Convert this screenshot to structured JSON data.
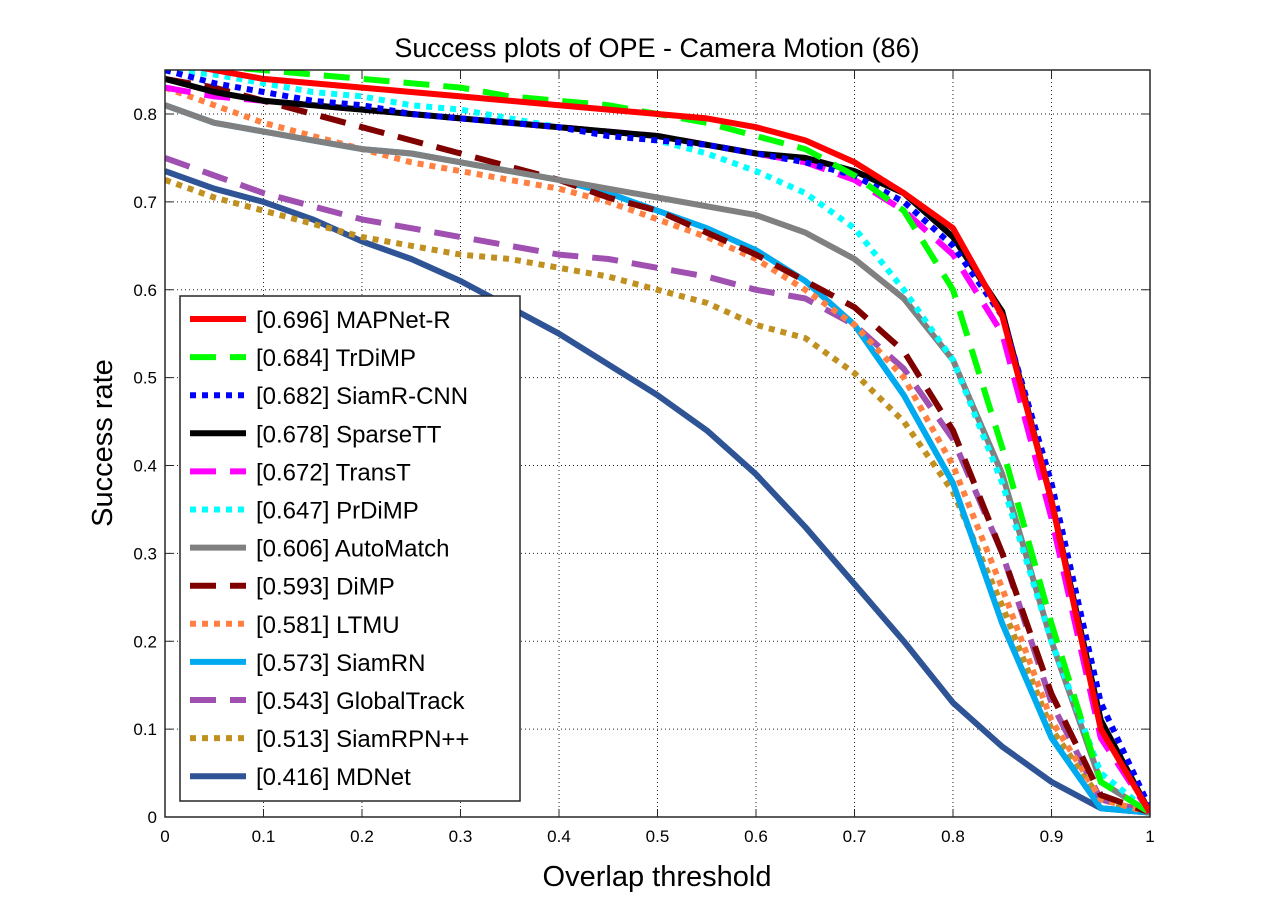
{
  "chart_data": {
    "type": "line",
    "title": "Success plots of OPE - Camera Motion (86)",
    "xlabel": "Overlap threshold",
    "ylabel": "Success rate",
    "xlim": [
      0,
      1
    ],
    "ylim": [
      0,
      0.85
    ],
    "xticks": [
      "0",
      "0.1",
      "0.2",
      "0.3",
      "0.4",
      "0.5",
      "0.6",
      "0.7",
      "0.8",
      "0.9",
      "1"
    ],
    "yticks": [
      "0",
      "0.1",
      "0.2",
      "0.3",
      "0.4",
      "0.5",
      "0.6",
      "0.7",
      "0.8"
    ],
    "grid": "on",
    "legend_location": "lower-left",
    "x": [
      0,
      0.05,
      0.1,
      0.15,
      0.2,
      0.25,
      0.3,
      0.35,
      0.4,
      0.45,
      0.5,
      0.55,
      0.6,
      0.65,
      0.7,
      0.75,
      0.8,
      0.85,
      0.9,
      0.95,
      1
    ],
    "series": [
      {
        "name": "[0.696] MAPNet-R",
        "color": "#ff0000",
        "style": "solid",
        "values": [
          0.86,
          0.85,
          0.84,
          0.835,
          0.83,
          0.825,
          0.82,
          0.815,
          0.81,
          0.805,
          0.8,
          0.795,
          0.785,
          0.77,
          0.745,
          0.71,
          0.67,
          0.57,
          0.36,
          0.1,
          0.005
        ]
      },
      {
        "name": "[0.684] TrDiMP",
        "color": "#00ff00",
        "style": "dash",
        "values": [
          0.865,
          0.855,
          0.85,
          0.845,
          0.84,
          0.835,
          0.83,
          0.82,
          0.815,
          0.81,
          0.8,
          0.79,
          0.775,
          0.76,
          0.73,
          0.69,
          0.6,
          0.42,
          0.22,
          0.04,
          0.005
        ]
      },
      {
        "name": "[0.682] SiamR-CNN",
        "color": "#0000ff",
        "style": "dot",
        "values": [
          0.85,
          0.835,
          0.825,
          0.815,
          0.81,
          0.8,
          0.795,
          0.79,
          0.785,
          0.775,
          0.77,
          0.765,
          0.755,
          0.745,
          0.73,
          0.7,
          0.65,
          0.57,
          0.38,
          0.13,
          0.01
        ]
      },
      {
        "name": "[0.678] SparseTT",
        "color": "#000000",
        "style": "solid",
        "values": [
          0.84,
          0.825,
          0.815,
          0.81,
          0.805,
          0.8,
          0.795,
          0.79,
          0.785,
          0.78,
          0.775,
          0.765,
          0.755,
          0.75,
          0.735,
          0.71,
          0.66,
          0.575,
          0.36,
          0.11,
          0.005
        ]
      },
      {
        "name": "[0.672] TransT",
        "color": "#ff00ff",
        "style": "dash",
        "values": [
          0.83,
          0.82,
          0.815,
          0.81,
          0.805,
          0.8,
          0.795,
          0.79,
          0.785,
          0.78,
          0.775,
          0.765,
          0.755,
          0.745,
          0.725,
          0.69,
          0.64,
          0.55,
          0.34,
          0.09,
          0.005
        ]
      },
      {
        "name": "[0.647] PrDiMP",
        "color": "#00ffff",
        "style": "dot",
        "values": [
          0.85,
          0.845,
          0.835,
          0.825,
          0.82,
          0.81,
          0.805,
          0.795,
          0.785,
          0.78,
          0.77,
          0.755,
          0.735,
          0.71,
          0.67,
          0.6,
          0.52,
          0.38,
          0.2,
          0.05,
          0.005
        ]
      },
      {
        "name": "[0.606] AutoMatch",
        "color": "#808080",
        "style": "solid",
        "values": [
          0.81,
          0.79,
          0.78,
          0.77,
          0.76,
          0.755,
          0.745,
          0.735,
          0.725,
          0.715,
          0.705,
          0.695,
          0.685,
          0.665,
          0.635,
          0.59,
          0.52,
          0.39,
          0.2,
          0.04,
          0.005
        ]
      },
      {
        "name": "[0.593] DiMP",
        "color": "#800000",
        "style": "dash",
        "values": [
          0.84,
          0.83,
          0.815,
          0.8,
          0.785,
          0.77,
          0.755,
          0.74,
          0.725,
          0.705,
          0.69,
          0.665,
          0.64,
          0.61,
          0.58,
          0.53,
          0.44,
          0.3,
          0.14,
          0.025,
          0.005
        ]
      },
      {
        "name": "[0.581] LTMU",
        "color": "#ff8040",
        "style": "dot",
        "values": [
          0.83,
          0.81,
          0.79,
          0.775,
          0.76,
          0.745,
          0.735,
          0.725,
          0.715,
          0.7,
          0.68,
          0.66,
          0.635,
          0.6,
          0.56,
          0.5,
          0.4,
          0.26,
          0.11,
          0.02,
          0.005
        ]
      },
      {
        "name": "[0.573] SiamRN",
        "color": "#00aaee",
        "style": "solid",
        "values": [
          0.81,
          0.79,
          0.78,
          0.77,
          0.76,
          0.755,
          0.745,
          0.735,
          0.725,
          0.71,
          0.69,
          0.67,
          0.645,
          0.61,
          0.56,
          0.48,
          0.38,
          0.22,
          0.09,
          0.01,
          0.005
        ]
      },
      {
        "name": "[0.543] GlobalTrack",
        "color": "#a050b0",
        "style": "dash",
        "values": [
          0.75,
          0.73,
          0.71,
          0.695,
          0.68,
          0.67,
          0.66,
          0.65,
          0.64,
          0.635,
          0.625,
          0.615,
          0.6,
          0.59,
          0.56,
          0.51,
          0.43,
          0.3,
          0.13,
          0.02,
          0.005
        ]
      },
      {
        "name": "[0.513] SiamRPN++",
        "color": "#c09020",
        "style": "dot",
        "values": [
          0.725,
          0.705,
          0.69,
          0.675,
          0.66,
          0.65,
          0.64,
          0.635,
          0.625,
          0.615,
          0.6,
          0.585,
          0.56,
          0.545,
          0.505,
          0.45,
          0.37,
          0.24,
          0.1,
          0.02,
          0.005
        ]
      },
      {
        "name": "[0.416] MDNet",
        "color": "#2f5496",
        "style": "solid",
        "values": [
          0.735,
          0.715,
          0.7,
          0.68,
          0.655,
          0.635,
          0.61,
          0.58,
          0.55,
          0.515,
          0.48,
          0.44,
          0.39,
          0.33,
          0.265,
          0.2,
          0.13,
          0.08,
          0.04,
          0.01,
          0.005
        ]
      }
    ]
  }
}
